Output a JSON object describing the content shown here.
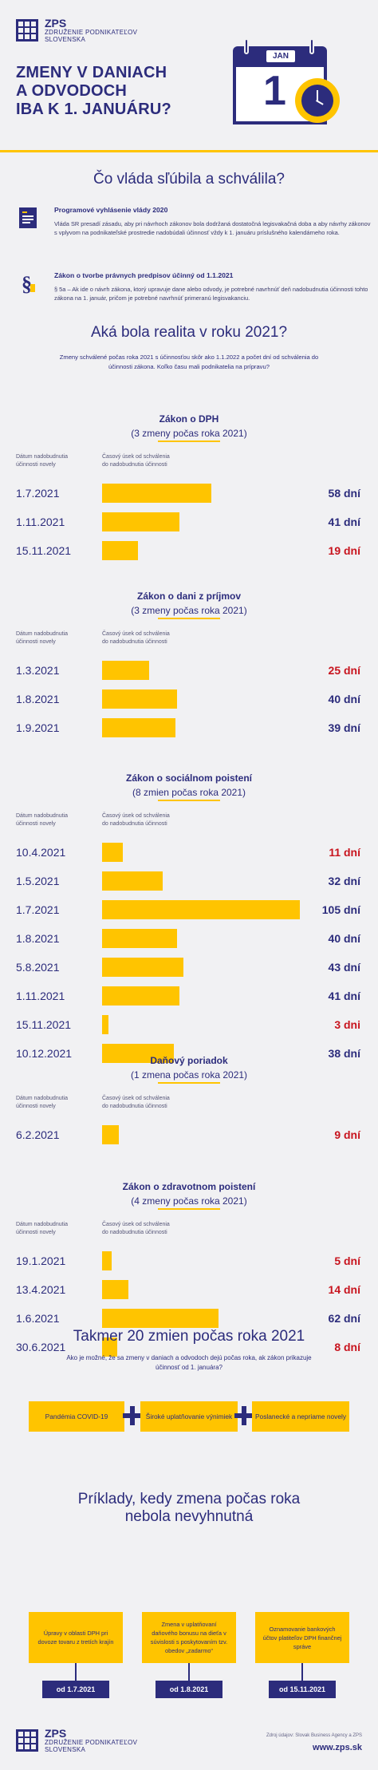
{
  "logo": {
    "name": "ZPS",
    "line1": "ZDRUŽENIE PODNIKATEĽOV",
    "line2": "SLOVENSKA"
  },
  "title": {
    "l1": "ZMENY V DANIACH",
    "l2": "A ODVODOCH",
    "l3": "IBA K 1. JANUÁRU?"
  },
  "calendar": {
    "month": "JAN",
    "day": "1"
  },
  "promise_heading": "Čo vláda sľúbila a schválila?",
  "promises": [
    {
      "title": "Programové vyhlásenie vlády 2020",
      "text": "Vláda SR presadí zásadu, aby pri návrhoch zákonov bola dodržaná dostatočná legisvakačná doba a aby návrhy zákonov s vplyvom na podnikateľské prostredie nadobúdali účinnosť vždy k 1. januáru príslušného kalendárneho roka."
    },
    {
      "title": "Zákon o tvorbe právnych predpisov účinný od 1.1.2021",
      "text": "§ 5a – Ak ide o návrh zákona, ktorý upravuje dane alebo odvody, je potrebné navrhnúť deň nadobudnutia účinnosti tohto zákona na 1. január, pričom je potrebné navrhnúť primeranú legisvakanciu."
    }
  ],
  "reality_heading": "Aká bola realita v roku 2021?",
  "reality_intro": "Zmeny schválené počas roka 2021 s účinnosťou skôr ako 1.1.2022 a počet dní od schválenia do účinnosti zákona. Koľko času mali podnikatelia na prípravu?",
  "col_date": [
    "Dátum nadobudnutia",
    "účinnosti novely"
  ],
  "col_period": [
    "Časový úsek od schválenia",
    "do nadobudnutia účinnosti"
  ],
  "laws": [
    {
      "title": "Zákon o DPH",
      "sub": "(3 zmeny počas roka 2021)",
      "rows": [
        {
          "date": "1.7.2021",
          "days": 58,
          "label": "58 dní",
          "red": false
        },
        {
          "date": "1.11.2021",
          "days": 41,
          "label": "41 dní",
          "red": false
        },
        {
          "date": "15.11.2021",
          "days": 19,
          "label": "19 dní",
          "red": true
        }
      ]
    },
    {
      "title": "Zákon o dani z príjmov",
      "sub": "(3 zmeny počas roka 2021)",
      "rows": [
        {
          "date": "1.3.2021",
          "days": 25,
          "label": "25 dní",
          "red": true
        },
        {
          "date": "1.8.2021",
          "days": 40,
          "label": "40 dní",
          "red": false
        },
        {
          "date": "1.9.2021",
          "days": 39,
          "label": "39 dní",
          "red": false
        }
      ]
    },
    {
      "title": "Zákon o sociálnom poistení",
      "sub": "(8 zmien počas roka 2021)",
      "rows": [
        {
          "date": "10.4.2021",
          "days": 11,
          "label": "11 dní",
          "red": true
        },
        {
          "date": "1.5.2021",
          "days": 32,
          "label": "32 dní",
          "red": false
        },
        {
          "date": "1.7.2021",
          "days": 105,
          "label": "105 dní",
          "red": false
        },
        {
          "date": "1.8.2021",
          "days": 40,
          "label": "40 dní",
          "red": false
        },
        {
          "date": "5.8.2021",
          "days": 43,
          "label": "43 dní",
          "red": false
        },
        {
          "date": "1.11.2021",
          "days": 41,
          "label": "41 dní",
          "red": false
        },
        {
          "date": "15.11.2021",
          "days": 3,
          "label": "3 dni",
          "red": true
        },
        {
          "date": "10.12.2021",
          "days": 38,
          "label": "38 dní",
          "red": false
        }
      ]
    },
    {
      "title": "Daňový poriadok",
      "sub": "(1 zmena počas roka 2021)",
      "rows": [
        {
          "date": "6.2.2021",
          "days": 9,
          "label": "9 dní",
          "red": true
        }
      ]
    },
    {
      "title": "Zákon o zdravotnom poistení",
      "sub": "(4 zmeny počas roka 2021)",
      "rows": [
        {
          "date": "19.1.2021",
          "days": 5,
          "label": "5 dní",
          "red": true
        },
        {
          "date": "13.4.2021",
          "days": 14,
          "label": "14 dní",
          "red": true
        },
        {
          "date": "1.6.2021",
          "days": 62,
          "label": "62 dní",
          "red": false
        },
        {
          "date": "30.6.2021",
          "days": 8,
          "label": "8 dní",
          "red": true
        }
      ]
    }
  ],
  "almost": {
    "heading": "Takmer 20 zmien počas roka 2021",
    "sub": "Ako je možné, že sa zmeny v daniach a odvodoch dejú počas roka, ak zákon prikazuje účinnosť od 1. januára?"
  },
  "reasons": [
    "Pandémia COVID-19",
    "Široké uplatňovanie výnimiek",
    "Poslanecké a nepriame novely"
  ],
  "examples_heading": {
    "l1": "Príklady, kedy zmena počas roka",
    "l2": "nebola nevyhnutná"
  },
  "examples": [
    {
      "text": "Úpravy v oblasti DPH pri dovoze tovaru z tretích krajín",
      "date": "od 1.7.2021"
    },
    {
      "text": "Zmena v uplatňovaní daňového bonusu na dieťa v súvislosti s poskytovaním tzv. obedov „zadarmo“",
      "date": "od 1.8.2021"
    },
    {
      "text": "Oznamovanie bankových účtov platiteľov DPH finančnej správe",
      "date": "od 15.11.2021"
    }
  ],
  "footer": {
    "source": "Zdroj údajov: Slovak Business Agency a ZPS",
    "url": "www.zps.sk"
  },
  "colors": {
    "navy": "#2c2c7c",
    "yellow": "#ffc400",
    "red": "#c8141e",
    "bg": "#f1f1f3"
  }
}
